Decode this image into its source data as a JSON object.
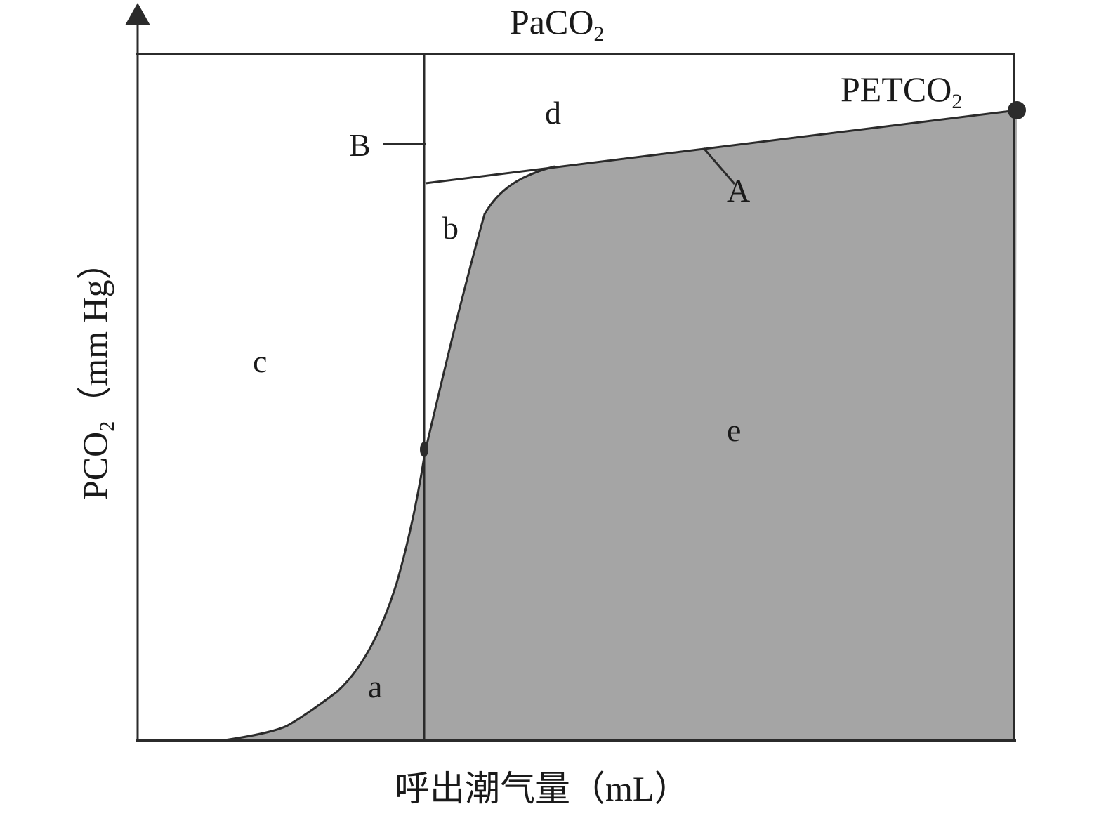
{
  "colors": {
    "area_fill": "#a5a5a5",
    "line": "#2b2b2b",
    "text": "#1a1a1a",
    "background": "#ffffff"
  },
  "top_label": {
    "main": "PaCO",
    "sub": "2"
  },
  "y_axis_label": {
    "main": "PCO",
    "sub": "2",
    "unit": "（mm Hg）"
  },
  "x_axis_label": "呼出潮气量（mL）",
  "petco2_label": {
    "main": "PETCO",
    "sub": "2"
  },
  "region_labels": {
    "a": "a",
    "b": "b",
    "c": "c",
    "d": "d",
    "e": "e"
  },
  "marker_labels": {
    "A": "A",
    "B": "B"
  },
  "icons": {
    "axis_arrow": "arrow-up-icon",
    "end_point": "filled-circle-marker"
  }
}
